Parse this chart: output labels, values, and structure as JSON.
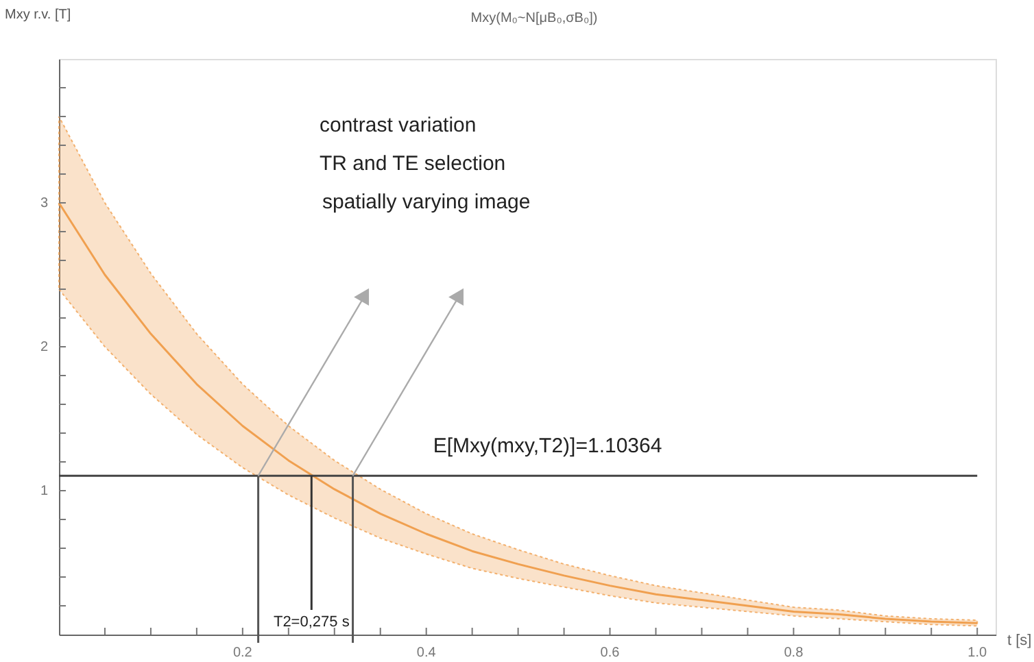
{
  "chart_data": {
    "type": "line",
    "title": "Mxy(M₀~N[μB₀,σB₀])",
    "xlabel": "t [s]",
    "ylabel": "Mxy r.v. [T]",
    "x": [
      0,
      0.05,
      0.1,
      0.15,
      0.2,
      0.25,
      0.3,
      0.35,
      0.4,
      0.45,
      0.5,
      0.55,
      0.6,
      0.65,
      0.7,
      0.75,
      0.8,
      0.85,
      0.9,
      0.95,
      1.0
    ],
    "series": [
      {
        "color": "#f0a050",
        "values": [
          3.0,
          2.5,
          2.09,
          1.74,
          1.45,
          1.21,
          1.01,
          0.84,
          0.7,
          0.58,
          0.49,
          0.41,
          0.34,
          0.28,
          0.24,
          0.2,
          0.16,
          0.14,
          0.11,
          0.09,
          0.08
        ],
        "upper": [
          3.6,
          3.0,
          2.51,
          2.09,
          1.74,
          1.45,
          1.21,
          1.01,
          0.84,
          0.7,
          0.59,
          0.49,
          0.41,
          0.34,
          0.29,
          0.24,
          0.19,
          0.17,
          0.13,
          0.11,
          0.1
        ],
        "lower": [
          2.4,
          2.0,
          1.67,
          1.39,
          1.16,
          0.97,
          0.81,
          0.67,
          0.56,
          0.46,
          0.39,
          0.33,
          0.27,
          0.22,
          0.19,
          0.16,
          0.13,
          0.11,
          0.09,
          0.07,
          0.06
        ]
      }
    ],
    "xlim": [
      0,
      1.02
    ],
    "ylim": [
      0,
      4
    ],
    "xticks": [
      {
        "value": 0.05,
        "label": null
      },
      {
        "value": 0.1,
        "label": null
      },
      {
        "value": 0.15,
        "label": null
      },
      0.2,
      {
        "value": 0.25,
        "label": null
      },
      {
        "value": 0.3,
        "label": null
      },
      {
        "value": 0.35,
        "label": null
      },
      0.4,
      {
        "value": 0.45,
        "label": null
      },
      {
        "value": 0.5,
        "label": null
      },
      {
        "value": 0.55,
        "label": null
      },
      0.6,
      {
        "value": 0.65,
        "label": null
      },
      {
        "value": 0.7,
        "label": null
      },
      {
        "value": 0.75,
        "label": null
      },
      0.8,
      {
        "value": 0.85,
        "label": null
      },
      {
        "value": 0.9,
        "label": null
      },
      {
        "value": 0.95,
        "label": null
      },
      {
        "value": 1.0,
        "label": "1.0"
      }
    ],
    "yticks": [
      {
        "value": 0.2,
        "label": null
      },
      {
        "value": 0.4,
        "label": null
      },
      {
        "value": 0.6,
        "label": null
      },
      {
        "value": 0.8,
        "label": null
      },
      1,
      {
        "value": 1.2,
        "label": null
      },
      {
        "value": 1.4,
        "label": null
      },
      {
        "value": 1.6,
        "label": null
      },
      {
        "value": 1.8,
        "label": null
      },
      2,
      {
        "value": 2.2,
        "label": null
      },
      {
        "value": 2.4,
        "label": null
      },
      {
        "value": 2.6,
        "label": null
      },
      {
        "value": 2.8,
        "label": null
      },
      3,
      {
        "value": 3.2,
        "label": null
      },
      {
        "value": 3.4,
        "label": null
      },
      {
        "value": 3.6,
        "label": null
      },
      {
        "value": 3.8,
        "label": null
      }
    ],
    "ref_lines": [
      {
        "axis": "y",
        "value": 1.10364,
        "label": "E[Mxy(mxy,T2)]=1.10364",
        "color": "#444444"
      },
      {
        "axis": "x",
        "value": 0.217,
        "color": "#555555"
      },
      {
        "axis": "x",
        "value": 0.275,
        "label": "T2=0,275 s",
        "color": "#333333"
      },
      {
        "axis": "x",
        "value": 0.32,
        "color": "#555555"
      }
    ],
    "annotations": [
      "contrast variation",
      "TR and TE selection",
      "spatially varying image"
    ],
    "grid": false,
    "line_style": "solid",
    "marker": "none"
  }
}
